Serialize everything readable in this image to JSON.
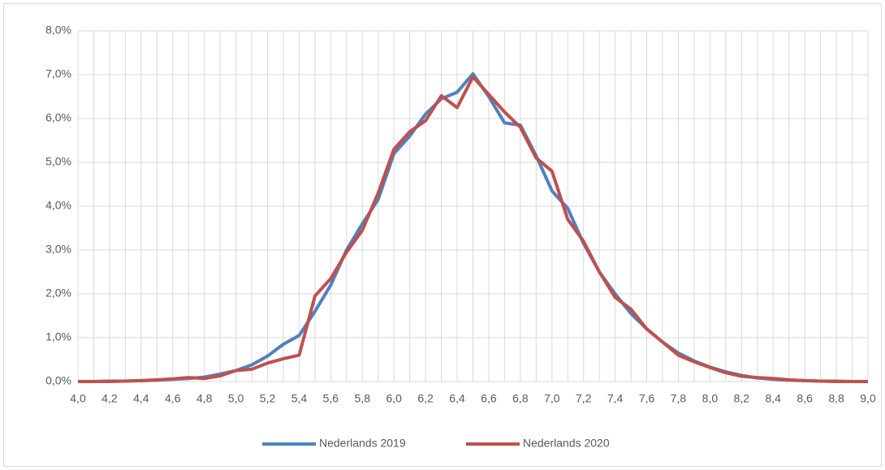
{
  "chart_data": {
    "type": "line",
    "categories": [
      "4,0",
      null,
      "4,2",
      null,
      "4,4",
      null,
      "4,6",
      null,
      "4,8",
      null,
      "5,0",
      null,
      "5,2",
      null,
      "5,4",
      null,
      "5,6",
      null,
      "5,8",
      null,
      "6,0",
      null,
      "6,2",
      null,
      "6,4",
      null,
      "6,6",
      null,
      "6,8",
      null,
      "7,0",
      null,
      "7,2",
      null,
      "7,4",
      null,
      "7,6",
      null,
      "7,8",
      null,
      "8,0",
      null,
      "8,2",
      null,
      "8,4",
      null,
      "8,6",
      null,
      "8,8",
      null,
      "9,0"
    ],
    "series": [
      {
        "name": "Nederlands 2019",
        "color": "#4f81bd",
        "values": [
          0,
          0,
          0,
          0.01,
          0.02,
          0.03,
          0.05,
          0.07,
          0.1,
          0.17,
          0.25,
          0.38,
          0.58,
          0.85,
          1.05,
          1.6,
          2.2,
          3.0,
          3.6,
          4.15,
          5.2,
          5.6,
          6.1,
          6.45,
          6.6,
          7.02,
          6.5,
          5.9,
          5.85,
          5.15,
          4.35,
          3.95,
          3.15,
          2.5,
          2.0,
          1.55,
          1.2,
          0.9,
          0.65,
          0.47,
          0.33,
          0.22,
          0.14,
          0.08,
          0.05,
          0.03,
          0.02,
          0.01,
          0.01,
          0,
          0
        ]
      },
      {
        "name": "Nederlands 2020",
        "color": "#c0504d",
        "values": [
          0,
          0,
          0.01,
          0.01,
          0.02,
          0.04,
          0.06,
          0.09,
          0.07,
          0.13,
          0.25,
          0.28,
          0.42,
          0.52,
          0.6,
          1.95,
          2.35,
          2.95,
          3.45,
          4.3,
          5.3,
          5.7,
          5.95,
          6.52,
          6.25,
          6.95,
          6.55,
          6.15,
          5.8,
          5.1,
          4.8,
          3.7,
          3.2,
          2.5,
          1.92,
          1.65,
          1.2,
          0.9,
          0.6,
          0.45,
          0.32,
          0.2,
          0.12,
          0.09,
          0.07,
          0.04,
          0.02,
          0.01,
          0,
          0,
          0
        ]
      }
    ],
    "ylim": [
      0,
      8
    ],
    "yticks": [
      {
        "value": 0,
        "label": "0,0%"
      },
      {
        "value": 1,
        "label": "1,0%"
      },
      {
        "value": 2,
        "label": "2,0%"
      },
      {
        "value": 3,
        "label": "3,0%"
      },
      {
        "value": 4,
        "label": "4,0%"
      },
      {
        "value": 5,
        "label": "5,0%"
      },
      {
        "value": 6,
        "label": "6,0%"
      },
      {
        "value": 7,
        "label": "7,0%"
      },
      {
        "value": 8,
        "label": "8,0%"
      }
    ],
    "grid": true,
    "legend": "bottom"
  }
}
